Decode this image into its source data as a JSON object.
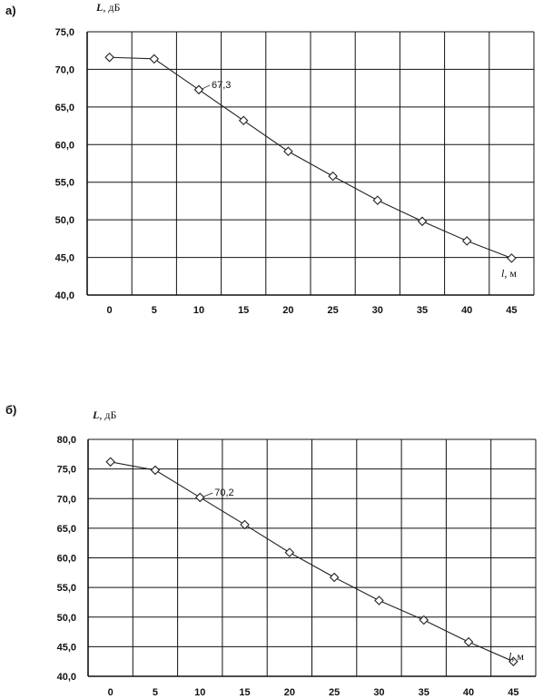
{
  "chart_data": [
    {
      "type": "line",
      "panel_label": "а)",
      "ylabel_symbol": "L",
      "ylabel_unit": ", дБ",
      "xlabel_symbol": "l",
      "xlabel_unit": ", м",
      "categories": [
        "0",
        "5",
        "10",
        "15",
        "20",
        "25",
        "30",
        "35",
        "40",
        "45"
      ],
      "values": [
        71.6,
        71.4,
        67.3,
        63.2,
        59.1,
        55.8,
        52.6,
        49.8,
        47.2,
        44.9
      ],
      "ylim": [
        40,
        75
      ],
      "yticks": [
        "40,0",
        "45,0",
        "50,0",
        "55,0",
        "60,0",
        "65,0",
        "70,0",
        "75,0"
      ],
      "annotation": {
        "text": "67,3",
        "index": 2
      },
      "grid": true
    },
    {
      "type": "line",
      "panel_label": "б)",
      "ylabel_symbol": "L",
      "ylabel_unit": ", дБ",
      "xlabel_symbol": "l",
      "xlabel_unit": ", м",
      "categories": [
        "0",
        "5",
        "10",
        "15",
        "20",
        "25",
        "30",
        "35",
        "40",
        "45"
      ],
      "values": [
        76.2,
        74.8,
        70.2,
        65.6,
        60.9,
        56.7,
        52.8,
        49.5,
        45.8,
        42.5
      ],
      "ylim": [
        40,
        80
      ],
      "yticks": [
        "40,0",
        "45,0",
        "50,0",
        "55,0",
        "60,0",
        "65,0",
        "70,0",
        "75,0",
        "80,0"
      ],
      "annotation": {
        "text": "70,2",
        "index": 2
      },
      "grid": true
    }
  ]
}
